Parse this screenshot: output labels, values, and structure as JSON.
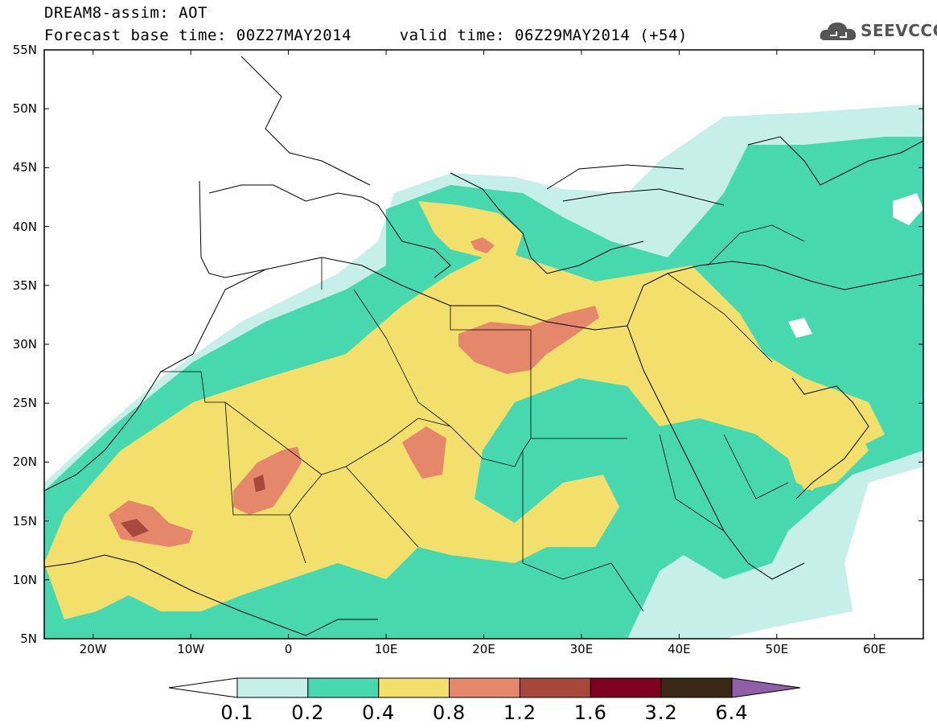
{
  "header": {
    "title": "DREAM8-assim: AOT",
    "subtitle": "Forecast base time: 00Z27MAY2014     valid time: 06Z29MAY2014 (+54)"
  },
  "logo": {
    "text": "SEEVCCC",
    "icon": "cloud-icon"
  },
  "axes": {
    "lat_labels": [
      "55N",
      "50N",
      "45N",
      "40N",
      "35N",
      "30N",
      "25N",
      "20N",
      "15N",
      "10N",
      "5N"
    ],
    "lon_labels": [
      "20W",
      "10W",
      "0",
      "10E",
      "20E",
      "30E",
      "40E",
      "50E",
      "60E"
    ],
    "lon_range": [
      -25,
      65
    ],
    "lat_range": [
      5,
      55
    ]
  },
  "colorbar": {
    "labels": [
      "0.1",
      "0.2",
      "0.4",
      "0.8",
      "1.2",
      "1.6",
      "3.2",
      "6.4"
    ],
    "colors": [
      "#ffffff",
      "#c6efe9",
      "#48d8b0",
      "#f3e06c",
      "#e4876a",
      "#a8483d",
      "#7e0020",
      "#3b2816",
      "#8f5fa8"
    ]
  },
  "map_features": [
    "coastlines",
    "country-borders",
    "aot-contours"
  ]
}
